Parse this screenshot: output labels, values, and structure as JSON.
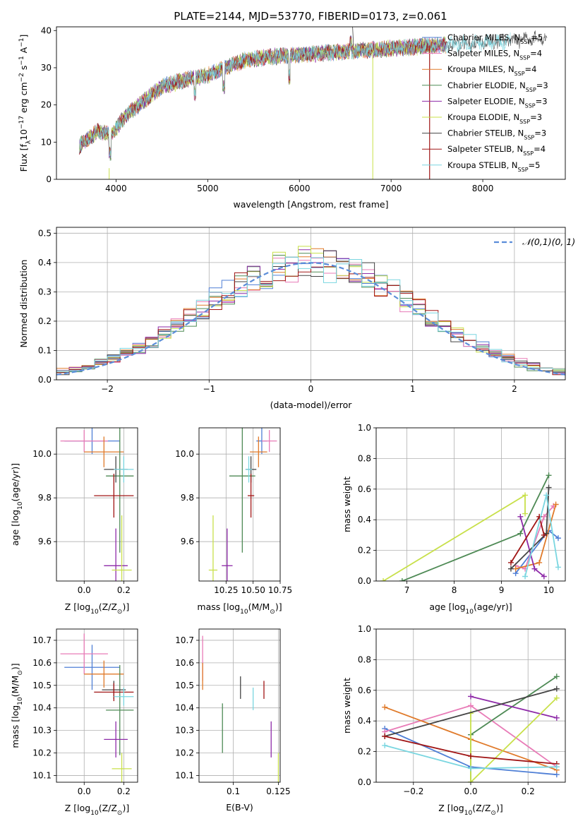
{
  "title": "PLATE=2144, MJD=53770, FIBERID=0173, z=0.061",
  "models": [
    {
      "name": "Chabrier MILES",
      "nssp": "5",
      "color": "#4f7fd6"
    },
    {
      "name": "Salpeter MILES",
      "nssp": "4",
      "color": "#e87bb7"
    },
    {
      "name": "Kroupa MILES",
      "nssp": "4",
      "color": "#e07a2a"
    },
    {
      "name": "Chabrier ELODIE",
      "nssp": "3",
      "color": "#4e8a55"
    },
    {
      "name": "Salpeter ELODIE",
      "nssp": "3",
      "color": "#8e2aa8"
    },
    {
      "name": "Kroupa ELODIE",
      "nssp": "3",
      "color": "#c8e04a"
    },
    {
      "name": "Chabrier STELIB",
      "nssp": "3",
      "color": "#444444"
    },
    {
      "name": "Salpeter STELIB",
      "nssp": "4",
      "color": "#a01515"
    },
    {
      "name": "Kroupa STELIB",
      "nssp": "5",
      "color": "#7ad6e0"
    }
  ],
  "chart_data": [
    {
      "type": "line",
      "id": "spectrum",
      "title": "PLATE=2144, MJD=53770, FIBERID=0173, z=0.061",
      "xlabel": "wavelength [Angstrom, rest frame]",
      "ylabel": "Flux [f_λ 10^-17 erg cm^-2 s^-1 A^-1]",
      "xlim": [
        3350,
        8900
      ],
      "ylim": [
        0,
        41
      ],
      "xticks": [
        4000,
        5000,
        6000,
        7000,
        8000
      ],
      "yticks": [
        0,
        10,
        20,
        30,
        40
      ],
      "x_range": [
        3600,
        8700
      ],
      "continuum": [
        [
          3600,
          9
        ],
        [
          3800,
          13
        ],
        [
          3950,
          12
        ],
        [
          4100,
          17
        ],
        [
          4300,
          21
        ],
        [
          4500,
          25
        ],
        [
          4800,
          27
        ],
        [
          5000,
          28
        ],
        [
          5200,
          30
        ],
        [
          5400,
          32
        ],
        [
          5700,
          33
        ],
        [
          6000,
          33.5
        ],
        [
          6300,
          34
        ],
        [
          6600,
          34.5
        ],
        [
          6900,
          35
        ],
        [
          7200,
          35.5
        ],
        [
          7500,
          36
        ],
        [
          7800,
          36.5
        ],
        [
          8200,
          37
        ],
        [
          8700,
          38
        ]
      ],
      "legend": "right"
    },
    {
      "type": "histogram",
      "id": "residuals",
      "xlabel": "(data-model)/error",
      "ylabel": "Normed distribution",
      "xlim": [
        -2.5,
        2.5
      ],
      "ylim": [
        0,
        0.52
      ],
      "xticks": [
        -2,
        -1,
        0,
        1,
        2
      ],
      "yticks": [
        0,
        0.1,
        0.2,
        0.3,
        0.4,
        0.5
      ],
      "bin_width": 0.125,
      "reference": {
        "name": "𝒩(0,1)",
        "color": "#5b8dd9",
        "dashed": true
      },
      "grid": true
    },
    {
      "type": "scatter",
      "id": "age_vs_Z",
      "xlabel": "Z [log10(Z/Z⊙)]",
      "ylabel": "age  [log10(age/yr)]",
      "xlim": [
        -0.14,
        0.27
      ],
      "ylim": [
        9.42,
        10.12
      ],
      "xticks": [
        0.0,
        0.2
      ],
      "yticks": [
        9.6,
        9.8,
        10.0
      ],
      "points": [
        {
          "model": 0,
          "x": 0.04,
          "y": 10.06,
          "xerr": 0.14,
          "yerr": 0.06
        },
        {
          "model": 1,
          "x": 0.0,
          "y": 10.06,
          "xerr": 0.12,
          "yerr": 0.05
        },
        {
          "model": 2,
          "x": 0.1,
          "y": 10.01,
          "xerr": 0.1,
          "yerr": 0.07
        },
        {
          "model": 3,
          "x": 0.18,
          "y": 9.9,
          "xerr": 0.07,
          "yerr": 0.35
        },
        {
          "model": 4,
          "x": 0.16,
          "y": 9.49,
          "xerr": 0.06,
          "yerr": 0.17
        },
        {
          "model": 5,
          "x": 0.19,
          "y": 9.47,
          "xerr": 0.05,
          "yerr": 0.25
        },
        {
          "model": 6,
          "x": 0.16,
          "y": 9.93,
          "xerr": 0.06,
          "yerr": 0.06
        },
        {
          "model": 7,
          "x": 0.15,
          "y": 9.81,
          "xerr": 0.1,
          "yerr": 0.1
        },
        {
          "model": 8,
          "x": 0.2,
          "y": 9.93,
          "xerr": 0.05,
          "yerr": 0.06
        }
      ]
    },
    {
      "type": "scatter",
      "id": "age_vs_mass",
      "xlabel": "mass [log10(M/M⊙)]",
      "ylabel": "",
      "xlim": [
        10.0,
        10.75
      ],
      "ylim": [
        9.42,
        10.12
      ],
      "xticks": [
        10.25,
        10.5,
        10.75
      ],
      "yticks": [
        9.6,
        9.8,
        10.0
      ],
      "points": [
        {
          "model": 0,
          "x": 10.58,
          "y": 10.06,
          "xerr": 0.05,
          "yerr": 0.06
        },
        {
          "model": 1,
          "x": 10.65,
          "y": 10.06,
          "xerr": 0.07,
          "yerr": 0.05
        },
        {
          "model": 2,
          "x": 10.55,
          "y": 10.01,
          "xerr": 0.08,
          "yerr": 0.07
        },
        {
          "model": 3,
          "x": 10.4,
          "y": 9.9,
          "xerr": 0.12,
          "yerr": 0.35
        },
        {
          "model": 4,
          "x": 10.26,
          "y": 9.49,
          "xerr": 0.05,
          "yerr": 0.17
        },
        {
          "model": 5,
          "x": 10.13,
          "y": 9.47,
          "xerr": 0.04,
          "yerr": 0.25
        },
        {
          "model": 6,
          "x": 10.48,
          "y": 9.93,
          "xerr": 0.05,
          "yerr": 0.06
        },
        {
          "model": 7,
          "x": 10.48,
          "y": 9.81,
          "xerr": 0.03,
          "yerr": 0.1
        },
        {
          "model": 8,
          "x": 10.46,
          "y": 9.93,
          "xerr": 0.03,
          "yerr": 0.06
        }
      ]
    },
    {
      "type": "line",
      "id": "massweight_vs_age",
      "xlabel": "age  [log10(age/yr)]",
      "ylabel": "mass weight",
      "xlim": [
        6.35,
        10.35
      ],
      "ylim": [
        0,
        1
      ],
      "xticks": [
        7,
        8,
        9,
        10
      ],
      "yticks": [
        0,
        0.2,
        0.4,
        0.6,
        0.8,
        1.0
      ],
      "series": [
        {
          "model": 0,
          "x": [
            9.3,
            10.0,
            10.2
          ],
          "y": [
            0.05,
            0.33,
            0.28
          ]
        },
        {
          "model": 1,
          "x": [
            9.3,
            9.5,
            9.9,
            10.1
          ],
          "y": [
            0.1,
            0.08,
            0.42,
            0.49
          ]
        },
        {
          "model": 2,
          "x": [
            9.3,
            9.8,
            10.15
          ],
          "y": [
            0.08,
            0.12,
            0.5
          ]
        },
        {
          "model": 3,
          "x": [
            6.9,
            9.4,
            10.0
          ],
          "y": [
            0.0,
            0.31,
            0.69
          ]
        },
        {
          "model": 4,
          "x": [
            9.4,
            9.7,
            9.9
          ],
          "y": [
            0.42,
            0.08,
            0.03
          ]
        },
        {
          "model": 5,
          "x": [
            6.5,
            9.5,
            9.5
          ],
          "y": [
            0.0,
            0.56,
            0.44
          ]
        },
        {
          "model": 6,
          "x": [
            9.2,
            9.95,
            10.0
          ],
          "y": [
            0.08,
            0.31,
            0.61
          ]
        },
        {
          "model": 7,
          "x": [
            9.2,
            9.8,
            9.9
          ],
          "y": [
            0.12,
            0.42,
            0.3
          ]
        },
        {
          "model": 8,
          "x": [
            9.5,
            9.95,
            10.2
          ],
          "y": [
            0.03,
            0.56,
            0.09
          ]
        }
      ]
    },
    {
      "type": "scatter",
      "id": "mass_vs_Z",
      "xlabel": "Z [log10(Z/Z⊙)]",
      "ylabel": "mass [log10(M/M⊙)]",
      "xlim": [
        -0.14,
        0.27
      ],
      "ylim": [
        10.07,
        10.75
      ],
      "xticks": [
        0.0,
        0.2
      ],
      "yticks": [
        10.1,
        10.2,
        10.3,
        10.4,
        10.5,
        10.6,
        10.7
      ],
      "points": [
        {
          "model": 0,
          "x": 0.04,
          "y": 10.58,
          "xerr": 0.14,
          "yerr": 0.1
        },
        {
          "model": 1,
          "x": 0.0,
          "y": 10.64,
          "xerr": 0.12,
          "yerr": 0.09
        },
        {
          "model": 2,
          "x": 0.1,
          "y": 10.55,
          "xerr": 0.1,
          "yerr": 0.06
        },
        {
          "model": 3,
          "x": 0.18,
          "y": 10.39,
          "xerr": 0.07,
          "yerr": 0.2
        },
        {
          "model": 4,
          "x": 0.16,
          "y": 10.26,
          "xerr": 0.06,
          "yerr": 0.08
        },
        {
          "model": 5,
          "x": 0.19,
          "y": 10.13,
          "xerr": 0.05,
          "yerr": 0.07
        },
        {
          "model": 6,
          "x": 0.15,
          "y": 10.48,
          "xerr": 0.06,
          "yerr": 0.04
        },
        {
          "model": 7,
          "x": 0.15,
          "y": 10.47,
          "xerr": 0.1,
          "yerr": 0.04
        },
        {
          "model": 8,
          "x": 0.2,
          "y": 10.45,
          "xerr": 0.05,
          "yerr": 0.04
        }
      ]
    },
    {
      "type": "scatter",
      "id": "mass_vs_ebv",
      "xlabel": "E(B-V)",
      "ylabel": "",
      "xlim": [
        0.081,
        0.126
      ],
      "ylim": [
        10.07,
        10.75
      ],
      "xticks": [
        0.1,
        0.125
      ],
      "yticks": [
        10.1,
        10.2,
        10.3,
        10.4,
        10.5,
        10.6,
        10.7
      ],
      "points": [
        {
          "model": 1,
          "x": 0.083,
          "y": 10.62,
          "xerr": 0,
          "yerr": 0.1
        },
        {
          "model": 2,
          "x": 0.083,
          "y": 10.54,
          "xerr": 0,
          "yerr": 0.06
        },
        {
          "model": 3,
          "x": 0.094,
          "y": 10.31,
          "xerr": 0,
          "yerr": 0.11
        },
        {
          "model": 6,
          "x": 0.104,
          "y": 10.49,
          "xerr": 0,
          "yerr": 0.05
        },
        {
          "model": 7,
          "x": 0.117,
          "y": 10.48,
          "xerr": 0,
          "yerr": 0.04
        },
        {
          "model": 8,
          "x": 0.111,
          "y": 10.44,
          "xerr": 0,
          "yerr": 0.05
        },
        {
          "model": 4,
          "x": 0.121,
          "y": 10.26,
          "xerr": 0,
          "yerr": 0.08
        },
        {
          "model": 5,
          "x": 0.125,
          "y": 10.13,
          "xerr": 0,
          "yerr": 0.07
        }
      ]
    },
    {
      "type": "line",
      "id": "massweight_vs_Z",
      "xlabel": "Z [log10(Z/Z⊙)]",
      "ylabel": "mass weight",
      "xlim": [
        -0.33,
        0.33
      ],
      "ylim": [
        0,
        1
      ],
      "xticks": [
        -0.2,
        0.0,
        0.2
      ],
      "yticks": [
        0,
        0.2,
        0.4,
        0.6,
        0.8,
        1.0
      ],
      "series": [
        {
          "model": 0,
          "x": [
            -0.3,
            0.0,
            0.3
          ],
          "y": [
            0.35,
            0.1,
            0.05
          ]
        },
        {
          "model": 1,
          "x": [
            -0.3,
            0.0,
            0.3
          ],
          "y": [
            0.33,
            0.5,
            0.1
          ]
        },
        {
          "model": 2,
          "x": [
            -0.3,
            0.0,
            0.3
          ],
          "y": [
            0.49,
            0.28,
            0.08
          ]
        },
        {
          "model": 3,
          "x": [
            0.0,
            0.0,
            0.3
          ],
          "y": [
            0.0,
            0.31,
            0.69
          ]
        },
        {
          "model": 4,
          "x": [
            0.0,
            0.3
          ],
          "y": [
            0.56,
            0.42
          ]
        },
        {
          "model": 5,
          "x": [
            0.0,
            0.0,
            0.3
          ],
          "y": [
            0.45,
            0.0,
            0.55
          ]
        },
        {
          "model": 6,
          "x": [
            -0.3,
            0.3
          ],
          "y": [
            0.3,
            0.61
          ]
        },
        {
          "model": 7,
          "x": [
            -0.3,
            0.0,
            0.3
          ],
          "y": [
            0.3,
            0.17,
            0.12
          ]
        },
        {
          "model": 8,
          "x": [
            -0.3,
            0.0,
            0.3
          ],
          "y": [
            0.24,
            0.09,
            0.1
          ]
        }
      ]
    }
  ]
}
